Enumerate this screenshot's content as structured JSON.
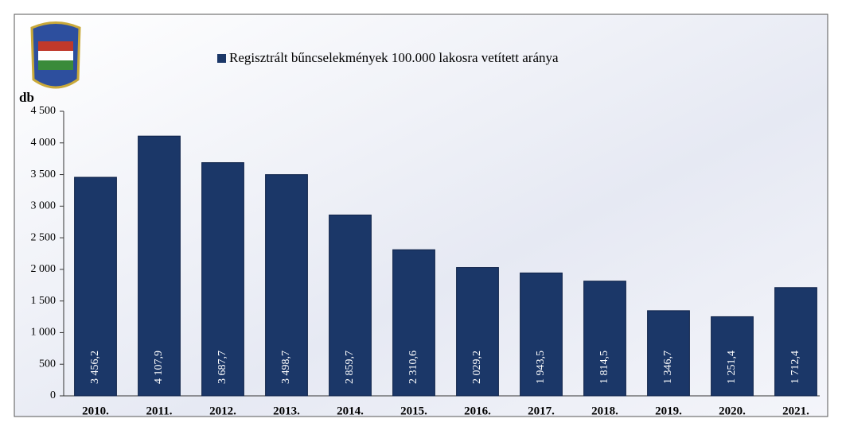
{
  "chart_data": {
    "type": "bar",
    "y_label": "db",
    "categories": [
      "2010.",
      "2011.",
      "2012.",
      "2013.",
      "2014.",
      "2015.",
      "2016.",
      "2017.",
      "2018.",
      "2019.",
      "2020.",
      "2021."
    ],
    "series": [
      {
        "name": "Regisztrált bűncselekmények 100.000 lakosra vetített aránya",
        "color": "#1b3768",
        "values": [
          3456.2,
          4107.9,
          3687.7,
          3498.7,
          2859.7,
          2310.6,
          2029.2,
          1943.5,
          1814.5,
          1346.7,
          1251.4,
          1712.4
        ],
        "value_labels": [
          "3 456,2",
          "4 107,9",
          "3 687,7",
          "3 498,7",
          "2 859,7",
          "2 310,6",
          "2 029,2",
          "1 943,5",
          "1 814,5",
          "1 346,7",
          "1 251,4",
          "1 712,4"
        ]
      }
    ],
    "ylim": [
      0,
      4500
    ],
    "yticks": [
      0,
      500,
      {
        "value": 1000,
        "label": "1 000"
      },
      {
        "value": 1500,
        "label": "1 500"
      },
      {
        "value": 2000,
        "label": "2 000"
      },
      {
        "value": 2500,
        "label": "2 500"
      },
      {
        "value": 3000,
        "label": "3 000"
      },
      {
        "value": 3500,
        "label": "3 500"
      },
      {
        "value": 4000,
        "label": "4 000"
      },
      {
        "value": 4500,
        "label": "4 500"
      }
    ],
    "grid": false,
    "legend": "top"
  }
}
